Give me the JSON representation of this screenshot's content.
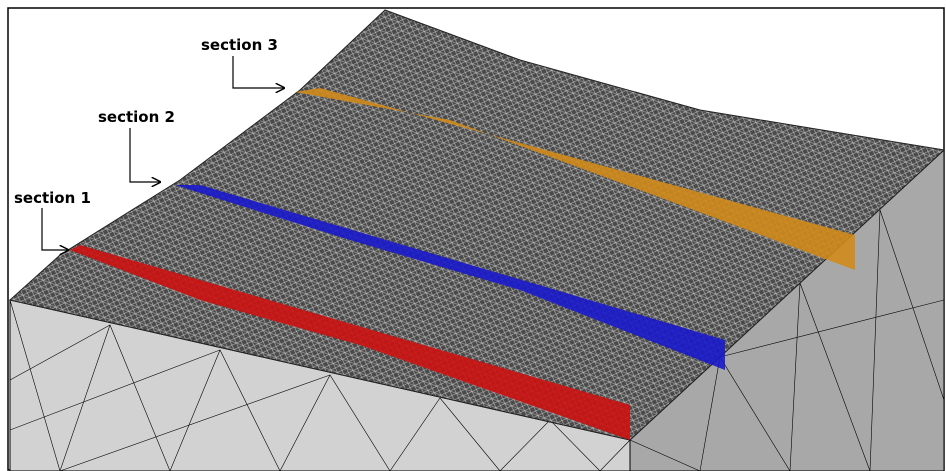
{
  "labels": [
    {
      "text": "section 1"
    },
    {
      "text": "section 2"
    },
    {
      "text": "section 3"
    }
  ]
}
